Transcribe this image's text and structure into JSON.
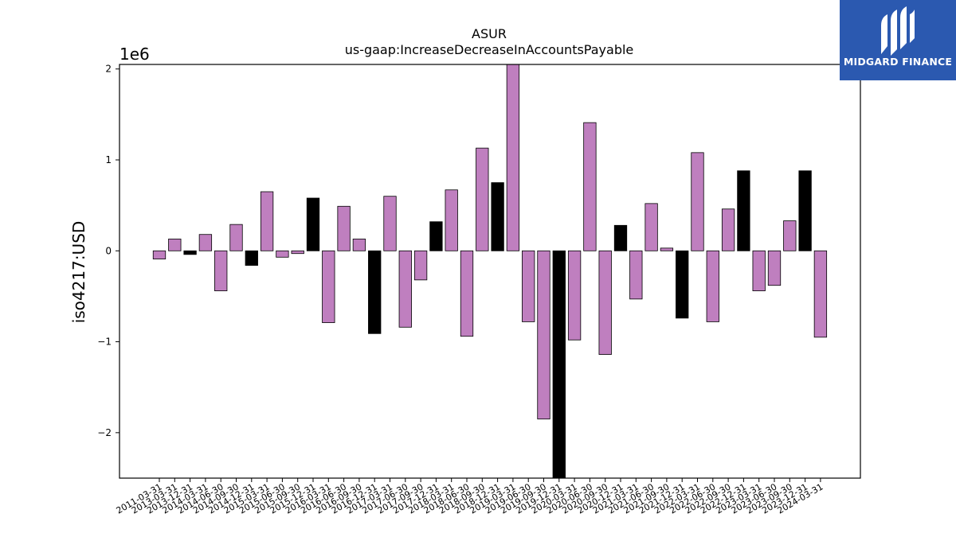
{
  "brand": {
    "name": "MIDGARD FINANCE",
    "icon": "midgard-logo-icon",
    "color": "#2b59b0"
  },
  "chart_data": {
    "type": "bar",
    "title": "ASUR",
    "subtitle": "us-gaap:IncreaseDecreaseInAccountsPayable",
    "ylabel": "iso4217:USD",
    "xlabel": "",
    "scale_label": "1e6",
    "ylim": [
      -2.5,
      2.05
    ],
    "yticks": [
      -2,
      -1,
      0,
      1,
      2
    ],
    "ytick_labels": [
      "−2",
      "−1",
      "0",
      "1",
      "2"
    ],
    "grid": false,
    "colors": {
      "quarter": "#bf7fbf",
      "annual": "#000000",
      "edge": "#000000"
    },
    "categories": [
      "2011-03-31",
      "2013-03-31",
      "2013-12-31",
      "2014-03-31",
      "2014-06-30",
      "2014-09-30",
      "2014-12-31",
      "2015-03-31",
      "2015-06-30",
      "2015-09-30",
      "2015-12-31",
      "2016-03-31",
      "2016-06-30",
      "2016-09-30",
      "2016-12-31",
      "2017-03-31",
      "2017-06-30",
      "2017-09-30",
      "2017-12-31",
      "2018-03-31",
      "2018-06-30",
      "2018-09-30",
      "2018-12-31",
      "2019-03-31",
      "2019-06-30",
      "2019-09-30",
      "2019-12-31",
      "2020-03-31",
      "2020-06-30",
      "2020-09-30",
      "2020-12-31",
      "2021-03-31",
      "2021-06-30",
      "2021-09-30",
      "2021-12-31",
      "2022-03-31",
      "2022-06-30",
      "2022-09-30",
      "2022-12-31",
      "2023-03-31",
      "2023-06-30",
      "2023-09-30",
      "2023-12-31",
      "2024-03-31"
    ],
    "values": [
      -0.09,
      0.13,
      -0.04,
      0.18,
      -0.44,
      0.29,
      -0.16,
      0.65,
      -0.07,
      -0.03,
      0.58,
      -0.79,
      0.49,
      0.13,
      -0.91,
      0.6,
      -0.84,
      -0.32,
      0.32,
      0.67,
      -0.94,
      1.13,
      0.75,
      2.05,
      -0.78,
      -1.85,
      -2.5,
      -0.98,
      1.41,
      -1.14,
      0.28,
      -0.53,
      0.52,
      0.03,
      -0.74,
      1.08,
      -0.78,
      0.46,
      0.88,
      -0.44,
      -0.38,
      0.33,
      0.88,
      -0.95
    ],
    "bar_kind": [
      "q",
      "q",
      "a",
      "q",
      "q",
      "q",
      "a",
      "q",
      "q",
      "q",
      "a",
      "q",
      "q",
      "q",
      "a",
      "q",
      "q",
      "q",
      "a",
      "q",
      "q",
      "q",
      "a",
      "q",
      "q",
      "q",
      "a",
      "q",
      "q",
      "q",
      "a",
      "q",
      "q",
      "q",
      "a",
      "q",
      "q",
      "q",
      "a",
      "q",
      "q",
      "q",
      "a",
      "q"
    ]
  }
}
